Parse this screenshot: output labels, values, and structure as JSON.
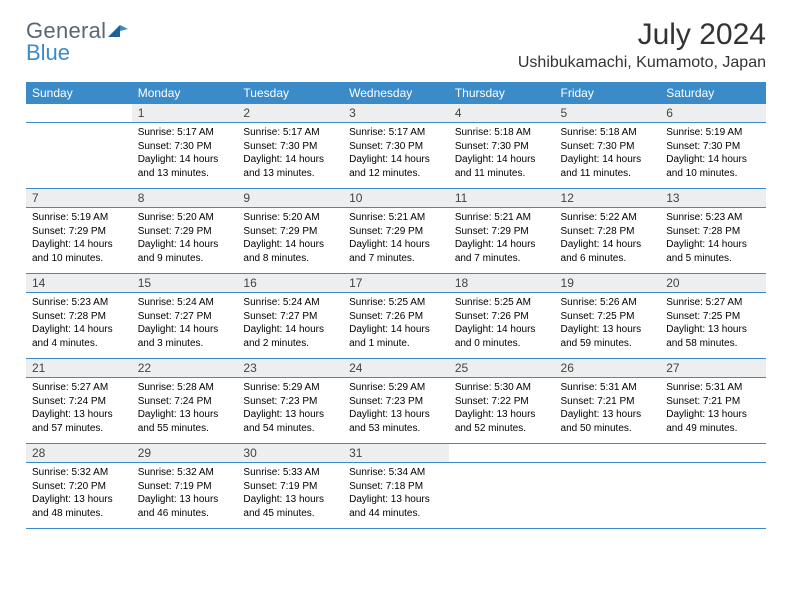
{
  "brand_general": "General",
  "brand_blue": "Blue",
  "title": "July 2024",
  "location": "Ushibukamachi, Kumamoto, Japan",
  "weekday_labels": [
    "Sunday",
    "Monday",
    "Tuesday",
    "Wednesday",
    "Thursday",
    "Friday",
    "Saturday"
  ],
  "colors": {
    "header_bg": "#3b8bc9",
    "header_text": "#ffffff",
    "daynum_bg": "#eceeef",
    "border": "#3b8bc9",
    "title_color": "#333333",
    "body_text": "#000000"
  },
  "weeks": [
    [
      null,
      {
        "n": "1",
        "sunrise": "Sunrise: 5:17 AM",
        "sunset": "Sunset: 7:30 PM",
        "day1": "Daylight: 14 hours",
        "day2": "and 13 minutes."
      },
      {
        "n": "2",
        "sunrise": "Sunrise: 5:17 AM",
        "sunset": "Sunset: 7:30 PM",
        "day1": "Daylight: 14 hours",
        "day2": "and 13 minutes."
      },
      {
        "n": "3",
        "sunrise": "Sunrise: 5:17 AM",
        "sunset": "Sunset: 7:30 PM",
        "day1": "Daylight: 14 hours",
        "day2": "and 12 minutes."
      },
      {
        "n": "4",
        "sunrise": "Sunrise: 5:18 AM",
        "sunset": "Sunset: 7:30 PM",
        "day1": "Daylight: 14 hours",
        "day2": "and 11 minutes."
      },
      {
        "n": "5",
        "sunrise": "Sunrise: 5:18 AM",
        "sunset": "Sunset: 7:30 PM",
        "day1": "Daylight: 14 hours",
        "day2": "and 11 minutes."
      },
      {
        "n": "6",
        "sunrise": "Sunrise: 5:19 AM",
        "sunset": "Sunset: 7:30 PM",
        "day1": "Daylight: 14 hours",
        "day2": "and 10 minutes."
      }
    ],
    [
      {
        "n": "7",
        "sunrise": "Sunrise: 5:19 AM",
        "sunset": "Sunset: 7:29 PM",
        "day1": "Daylight: 14 hours",
        "day2": "and 10 minutes."
      },
      {
        "n": "8",
        "sunrise": "Sunrise: 5:20 AM",
        "sunset": "Sunset: 7:29 PM",
        "day1": "Daylight: 14 hours",
        "day2": "and 9 minutes."
      },
      {
        "n": "9",
        "sunrise": "Sunrise: 5:20 AM",
        "sunset": "Sunset: 7:29 PM",
        "day1": "Daylight: 14 hours",
        "day2": "and 8 minutes."
      },
      {
        "n": "10",
        "sunrise": "Sunrise: 5:21 AM",
        "sunset": "Sunset: 7:29 PM",
        "day1": "Daylight: 14 hours",
        "day2": "and 7 minutes."
      },
      {
        "n": "11",
        "sunrise": "Sunrise: 5:21 AM",
        "sunset": "Sunset: 7:29 PM",
        "day1": "Daylight: 14 hours",
        "day2": "and 7 minutes."
      },
      {
        "n": "12",
        "sunrise": "Sunrise: 5:22 AM",
        "sunset": "Sunset: 7:28 PM",
        "day1": "Daylight: 14 hours",
        "day2": "and 6 minutes."
      },
      {
        "n": "13",
        "sunrise": "Sunrise: 5:23 AM",
        "sunset": "Sunset: 7:28 PM",
        "day1": "Daylight: 14 hours",
        "day2": "and 5 minutes."
      }
    ],
    [
      {
        "n": "14",
        "sunrise": "Sunrise: 5:23 AM",
        "sunset": "Sunset: 7:28 PM",
        "day1": "Daylight: 14 hours",
        "day2": "and 4 minutes."
      },
      {
        "n": "15",
        "sunrise": "Sunrise: 5:24 AM",
        "sunset": "Sunset: 7:27 PM",
        "day1": "Daylight: 14 hours",
        "day2": "and 3 minutes."
      },
      {
        "n": "16",
        "sunrise": "Sunrise: 5:24 AM",
        "sunset": "Sunset: 7:27 PM",
        "day1": "Daylight: 14 hours",
        "day2": "and 2 minutes."
      },
      {
        "n": "17",
        "sunrise": "Sunrise: 5:25 AM",
        "sunset": "Sunset: 7:26 PM",
        "day1": "Daylight: 14 hours",
        "day2": "and 1 minute."
      },
      {
        "n": "18",
        "sunrise": "Sunrise: 5:25 AM",
        "sunset": "Sunset: 7:26 PM",
        "day1": "Daylight: 14 hours",
        "day2": "and 0 minutes."
      },
      {
        "n": "19",
        "sunrise": "Sunrise: 5:26 AM",
        "sunset": "Sunset: 7:25 PM",
        "day1": "Daylight: 13 hours",
        "day2": "and 59 minutes."
      },
      {
        "n": "20",
        "sunrise": "Sunrise: 5:27 AM",
        "sunset": "Sunset: 7:25 PM",
        "day1": "Daylight: 13 hours",
        "day2": "and 58 minutes."
      }
    ],
    [
      {
        "n": "21",
        "sunrise": "Sunrise: 5:27 AM",
        "sunset": "Sunset: 7:24 PM",
        "day1": "Daylight: 13 hours",
        "day2": "and 57 minutes."
      },
      {
        "n": "22",
        "sunrise": "Sunrise: 5:28 AM",
        "sunset": "Sunset: 7:24 PM",
        "day1": "Daylight: 13 hours",
        "day2": "and 55 minutes."
      },
      {
        "n": "23",
        "sunrise": "Sunrise: 5:29 AM",
        "sunset": "Sunset: 7:23 PM",
        "day1": "Daylight: 13 hours",
        "day2": "and 54 minutes."
      },
      {
        "n": "24",
        "sunrise": "Sunrise: 5:29 AM",
        "sunset": "Sunset: 7:23 PM",
        "day1": "Daylight: 13 hours",
        "day2": "and 53 minutes."
      },
      {
        "n": "25",
        "sunrise": "Sunrise: 5:30 AM",
        "sunset": "Sunset: 7:22 PM",
        "day1": "Daylight: 13 hours",
        "day2": "and 52 minutes."
      },
      {
        "n": "26",
        "sunrise": "Sunrise: 5:31 AM",
        "sunset": "Sunset: 7:21 PM",
        "day1": "Daylight: 13 hours",
        "day2": "and 50 minutes."
      },
      {
        "n": "27",
        "sunrise": "Sunrise: 5:31 AM",
        "sunset": "Sunset: 7:21 PM",
        "day1": "Daylight: 13 hours",
        "day2": "and 49 minutes."
      }
    ],
    [
      {
        "n": "28",
        "sunrise": "Sunrise: 5:32 AM",
        "sunset": "Sunset: 7:20 PM",
        "day1": "Daylight: 13 hours",
        "day2": "and 48 minutes."
      },
      {
        "n": "29",
        "sunrise": "Sunrise: 5:32 AM",
        "sunset": "Sunset: 7:19 PM",
        "day1": "Daylight: 13 hours",
        "day2": "and 46 minutes."
      },
      {
        "n": "30",
        "sunrise": "Sunrise: 5:33 AM",
        "sunset": "Sunset: 7:19 PM",
        "day1": "Daylight: 13 hours",
        "day2": "and 45 minutes."
      },
      {
        "n": "31",
        "sunrise": "Sunrise: 5:34 AM",
        "sunset": "Sunset: 7:18 PM",
        "day1": "Daylight: 13 hours",
        "day2": "and 44 minutes."
      },
      null,
      null,
      null
    ]
  ]
}
